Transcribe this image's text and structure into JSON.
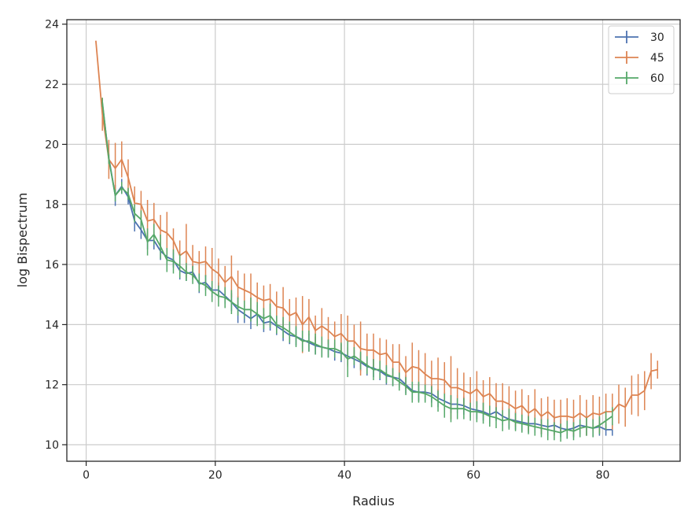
{
  "chart_data": {
    "type": "line",
    "title": "",
    "xlabel": "Radius",
    "ylabel": "log Bispectrum",
    "xlim": [
      -3,
      92
    ],
    "ylim": [
      9.45,
      24.15
    ],
    "xticks": [
      0,
      20,
      40,
      60,
      80
    ],
    "yticks": [
      10,
      12,
      14,
      16,
      18,
      20,
      22,
      24
    ],
    "grid": true,
    "legend_position": "top-right",
    "series": [
      {
        "name": "30",
        "color": "#4c72b0",
        "x": [
          2.5,
          3.5,
          4.5,
          5.5,
          6.5,
          7.5,
          8.5,
          9.5,
          10.5,
          11.5,
          12.5,
          13.5,
          14.5,
          15.5,
          16.5,
          17.5,
          18.5,
          19.5,
          20.5,
          21.5,
          22.5,
          23.5,
          24.5,
          25.5,
          26.5,
          27.5,
          28.5,
          29.5,
          30.5,
          31.5,
          32.5,
          33.5,
          34.5,
          35.5,
          36.5,
          37.5,
          38.5,
          39.5,
          40.5,
          41.5,
          42.5,
          43.5,
          44.5,
          45.5,
          46.5,
          47.5,
          48.5,
          49.5,
          50.5,
          51.5,
          52.5,
          53.5,
          54.5,
          55.5,
          56.5,
          57.5,
          58.5,
          59.5,
          60.5,
          61.5,
          62.5,
          63.5,
          64.5,
          65.5,
          66.5,
          67.5,
          68.5,
          69.5,
          70.5,
          71.5,
          72.5,
          73.5,
          74.5,
          75.5,
          76.5,
          77.5,
          78.5,
          79.5,
          80.5,
          81.5
        ],
        "y": [
          21.35,
          19.55,
          18.3,
          18.6,
          18.25,
          17.45,
          17.15,
          16.8,
          16.8,
          16.45,
          16.25,
          16.15,
          15.8,
          15.7,
          15.75,
          15.35,
          15.4,
          15.15,
          15.15,
          14.95,
          14.75,
          14.5,
          14.35,
          14.2,
          14.35,
          14.05,
          14.1,
          13.95,
          13.8,
          13.65,
          13.6,
          13.5,
          13.4,
          13.3,
          13.25,
          13.2,
          13.1,
          13.05,
          12.95,
          12.85,
          12.75,
          12.6,
          12.55,
          12.45,
          12.3,
          12.25,
          12.2,
          12.0,
          11.8,
          11.75,
          11.75,
          11.7,
          11.55,
          11.45,
          11.35,
          11.35,
          11.3,
          11.2,
          11.15,
          11.1,
          11.0,
          11.1,
          10.95,
          10.85,
          10.8,
          10.75,
          10.7,
          10.7,
          10.65,
          10.6,
          10.65,
          10.55,
          10.5,
          10.55,
          10.65,
          10.6,
          10.55,
          10.6,
          10.5,
          10.5
        ],
        "err": [
          0.15,
          0.15,
          0.35,
          0.25,
          0.25,
          0.35,
          0.3,
          0.3,
          0.3,
          0.3,
          0.25,
          0.25,
          0.3,
          0.25,
          0.25,
          0.3,
          0.25,
          0.25,
          0.25,
          0.25,
          0.3,
          0.45,
          0.3,
          0.35,
          0.3,
          0.3,
          0.3,
          0.3,
          0.35,
          0.3,
          0.3,
          0.3,
          0.3,
          0.3,
          0.3,
          0.3,
          0.3,
          0.3,
          0.3,
          0.3,
          0.3,
          0.3,
          0.3,
          0.3,
          0.3,
          0.3,
          0.3,
          0.3,
          0.3,
          0.3,
          0.3,
          0.3,
          0.3,
          0.3,
          0.3,
          0.3,
          0.3,
          0.3,
          0.3,
          0.3,
          0.3,
          0.3,
          0.3,
          0.3,
          0.3,
          0.3,
          0.3,
          0.3,
          0.3,
          0.3,
          0.3,
          0.3,
          0.3,
          0.3,
          0.3,
          0.3,
          0.3,
          0.3,
          0.2,
          0.2
        ]
      },
      {
        "name": "45",
        "color": "#dd8452",
        "x": [
          1.5,
          2.5,
          3.5,
          4.5,
          5.5,
          6.5,
          7.5,
          8.5,
          9.5,
          10.5,
          11.5,
          12.5,
          13.5,
          14.5,
          15.5,
          16.5,
          17.5,
          18.5,
          19.5,
          20.5,
          21.5,
          22.5,
          23.5,
          24.5,
          25.5,
          26.5,
          27.5,
          28.5,
          29.5,
          30.5,
          31.5,
          32.5,
          33.5,
          34.5,
          35.5,
          36.5,
          37.5,
          38.5,
          39.5,
          40.5,
          41.5,
          42.5,
          43.5,
          44.5,
          45.5,
          46.5,
          47.5,
          48.5,
          49.5,
          50.5,
          51.5,
          52.5,
          53.5,
          54.5,
          55.5,
          56.5,
          57.5,
          58.5,
          59.5,
          60.5,
          61.5,
          62.5,
          63.5,
          64.5,
          65.5,
          66.5,
          67.5,
          68.5,
          69.5,
          70.5,
          71.5,
          72.5,
          73.5,
          74.5,
          75.5,
          76.5,
          77.5,
          78.5,
          79.5,
          80.5,
          81.5,
          82.5,
          83.5,
          84.5,
          85.5,
          86.5,
          87.5,
          88.5
        ],
        "y": [
          23.45,
          21.0,
          19.5,
          19.2,
          19.5,
          18.9,
          18.05,
          18.0,
          17.45,
          17.5,
          17.15,
          17.05,
          16.8,
          16.3,
          16.45,
          16.1,
          16.05,
          16.1,
          15.85,
          15.7,
          15.4,
          15.6,
          15.25,
          15.15,
          15.05,
          14.9,
          14.8,
          14.85,
          14.6,
          14.55,
          14.3,
          14.4,
          14.0,
          14.25,
          13.8,
          13.95,
          13.8,
          13.6,
          13.7,
          13.45,
          13.45,
          13.2,
          13.15,
          13.15,
          13.0,
          13.05,
          12.75,
          12.75,
          12.4,
          12.6,
          12.55,
          12.35,
          12.2,
          12.2,
          12.15,
          11.9,
          11.9,
          11.8,
          11.7,
          11.85,
          11.6,
          11.7,
          11.45,
          11.45,
          11.35,
          11.2,
          11.3,
          11.05,
          11.2,
          10.95,
          11.1,
          10.9,
          10.95,
          10.95,
          10.9,
          11.05,
          10.9,
          11.05,
          11.0,
          11.1,
          11.1,
          11.35,
          11.25,
          11.65,
          11.65,
          11.8,
          12.45,
          12.5
        ],
        "err": [
          0,
          0.55,
          0.65,
          0.85,
          0.6,
          0.6,
          0.55,
          0.45,
          0.7,
          0.55,
          0.5,
          0.7,
          0.4,
          0.5,
          0.9,
          0.55,
          0.4,
          0.5,
          0.7,
          0.5,
          0.55,
          0.7,
          0.55,
          0.55,
          0.65,
          0.5,
          0.5,
          0.5,
          0.5,
          0.7,
          0.55,
          0.5,
          0.95,
          0.6,
          0.5,
          0.6,
          0.45,
          0.5,
          0.65,
          0.85,
          0.55,
          0.9,
          0.55,
          0.55,
          0.55,
          0.45,
          0.6,
          0.6,
          0.55,
          0.8,
          0.6,
          0.7,
          0.6,
          0.7,
          0.6,
          1.05,
          0.65,
          0.6,
          0.55,
          0.6,
          0.55,
          0.55,
          0.6,
          0.6,
          0.6,
          0.6,
          0.55,
          0.6,
          0.65,
          0.6,
          0.5,
          0.6,
          0.55,
          0.6,
          0.6,
          0.6,
          0.6,
          0.6,
          0.6,
          0.6,
          0.6,
          0.65,
          0.65,
          0.65,
          0.7,
          0.65,
          0.6,
          0.3
        ]
      },
      {
        "name": "60",
        "color": "#55a868",
        "x": [
          2.5,
          3.5,
          4.5,
          5.5,
          6.5,
          7.5,
          8.5,
          9.5,
          10.5,
          11.5,
          12.5,
          13.5,
          14.5,
          15.5,
          16.5,
          17.5,
          18.5,
          19.5,
          20.5,
          21.5,
          22.5,
          23.5,
          24.5,
          25.5,
          26.5,
          27.5,
          28.5,
          29.5,
          30.5,
          31.5,
          32.5,
          33.5,
          34.5,
          35.5,
          36.5,
          37.5,
          38.5,
          39.5,
          40.5,
          41.5,
          42.5,
          43.5,
          44.5,
          45.5,
          46.5,
          47.5,
          48.5,
          49.5,
          50.5,
          51.5,
          52.5,
          53.5,
          54.5,
          55.5,
          56.5,
          57.5,
          58.5,
          59.5,
          60.5,
          61.5,
          62.5,
          63.5,
          64.5,
          65.5,
          66.5,
          67.5,
          68.5,
          69.5,
          70.5,
          71.5,
          72.5,
          73.5,
          74.5,
          75.5,
          76.5,
          77.5,
          78.5,
          79.5,
          80.5,
          81.5
        ],
        "y": [
          21.4,
          19.5,
          18.3,
          18.55,
          18.35,
          17.7,
          17.5,
          16.75,
          17.0,
          16.6,
          16.15,
          16.1,
          15.95,
          15.75,
          15.65,
          15.4,
          15.3,
          15.1,
          14.95,
          14.9,
          14.75,
          14.6,
          14.5,
          14.5,
          14.35,
          14.2,
          14.3,
          14.0,
          13.9,
          13.75,
          13.6,
          13.45,
          13.45,
          13.35,
          13.25,
          13.2,
          13.2,
          13.1,
          12.85,
          12.95,
          12.8,
          12.65,
          12.5,
          12.5,
          12.35,
          12.25,
          12.1,
          11.95,
          11.75,
          11.75,
          11.7,
          11.6,
          11.45,
          11.3,
          11.2,
          11.2,
          11.2,
          11.1,
          11.1,
          11.05,
          10.95,
          10.9,
          10.8,
          10.85,
          10.75,
          10.7,
          10.65,
          10.6,
          10.55,
          10.5,
          10.45,
          10.4,
          10.5,
          10.45,
          10.55,
          10.6,
          10.55,
          10.65,
          10.8,
          10.95
        ],
        "err": [
          0.15,
          0.15,
          0.2,
          0.2,
          0.2,
          0.3,
          0.3,
          0.45,
          0.35,
          0.4,
          0.4,
          0.4,
          0.4,
          0.3,
          0.3,
          0.3,
          0.35,
          0.35,
          0.35,
          0.35,
          0.4,
          0.3,
          0.3,
          0.4,
          0.4,
          0.35,
          0.4,
          0.3,
          0.35,
          0.35,
          0.35,
          0.35,
          0.35,
          0.35,
          0.35,
          0.3,
          0.3,
          0.3,
          0.6,
          0.3,
          0.3,
          0.3,
          0.35,
          0.3,
          0.3,
          0.3,
          0.3,
          0.3,
          0.35,
          0.35,
          0.3,
          0.35,
          0.35,
          0.4,
          0.45,
          0.35,
          0.35,
          0.3,
          0.35,
          0.35,
          0.35,
          0.35,
          0.35,
          0.35,
          0.3,
          0.3,
          0.3,
          0.3,
          0.3,
          0.35,
          0.3,
          0.3,
          0.3,
          0.3,
          0.3,
          0.3,
          0.3,
          0.3,
          0.3,
          0.3
        ]
      }
    ]
  }
}
